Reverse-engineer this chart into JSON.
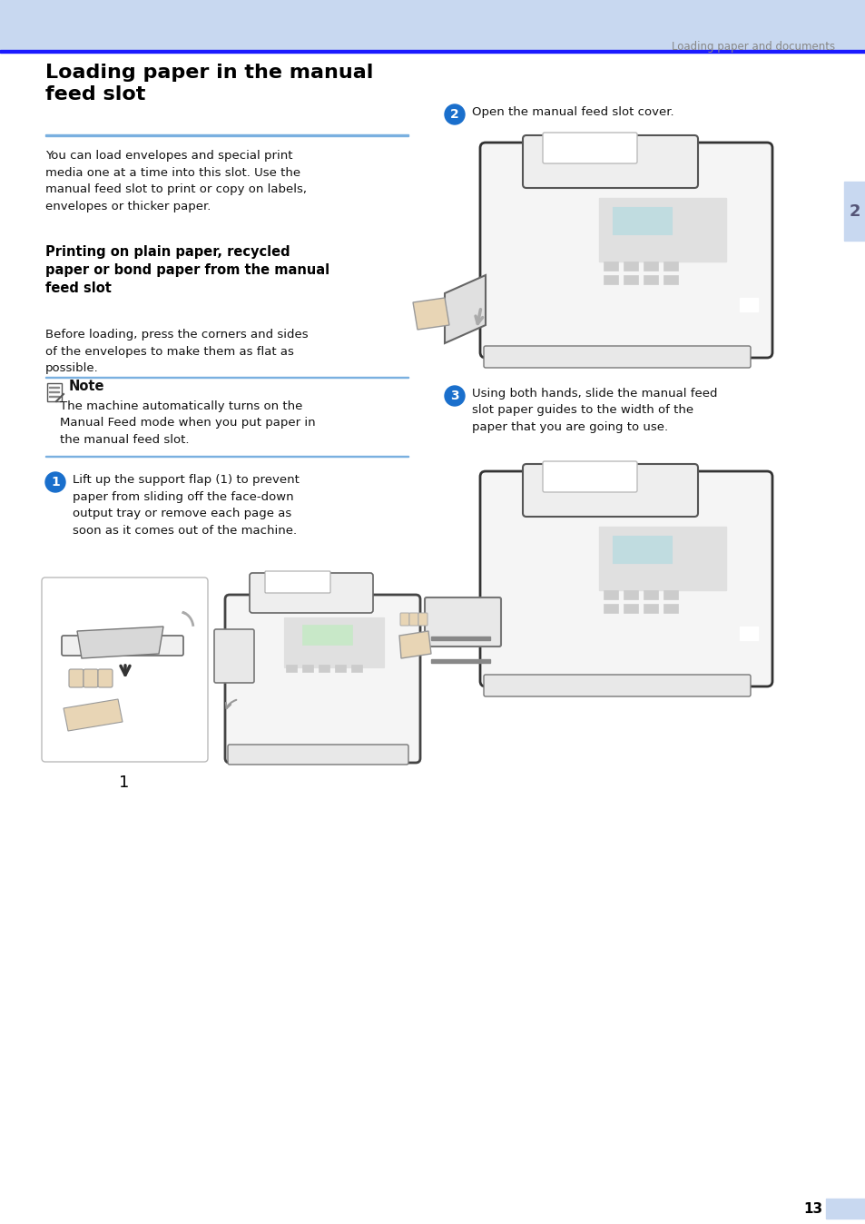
{
  "page_bg": "#ffffff",
  "header_bg": "#c8d8f0",
  "header_line_color": "#1a1aff",
  "sidebar_color": "#c8d8f0",
  "header_text": "Loading paper and documents",
  "header_text_color": "#888888",
  "title": "Loading paper in the manual\nfeed slot",
  "title_color": "#000000",
  "title_divider_color": "#7ab0e0",
  "subtitle": "Printing on plain paper, recycled\npaper or bond paper from the manual\nfeed slot",
  "body_text_1": "You can load envelopes and special print\nmedia one at a time into this slot. Use the\nmanual feed slot to print or copy on labels,\nenvelopes or thicker paper.",
  "body_text_2": "Before loading, press the corners and sides\nof the envelopes to make them as flat as\npossible.",
  "note_title": "Note",
  "note_text": "The machine automatically turns on the\nManual Feed mode when you put paper in\nthe manual feed slot.",
  "step1_circle_color": "#1a6fcc",
  "step1_text": "Lift up the support flap (1) to prevent\npaper from sliding off the face-down\noutput tray or remove each page as\nsoon as it comes out of the machine.",
  "step2_circle_color": "#1a6fcc",
  "step2_text": "Open the manual feed slot cover.",
  "step3_circle_color": "#1a6fcc",
  "step3_text": "Using both hands, slide the manual feed\nslot paper guides to the width of the\npaper that you are going to use.",
  "page_number": "13",
  "chapter_number": "2",
  "chapter_bg": "#c8d8f0",
  "note_line_color": "#7ab0e0"
}
